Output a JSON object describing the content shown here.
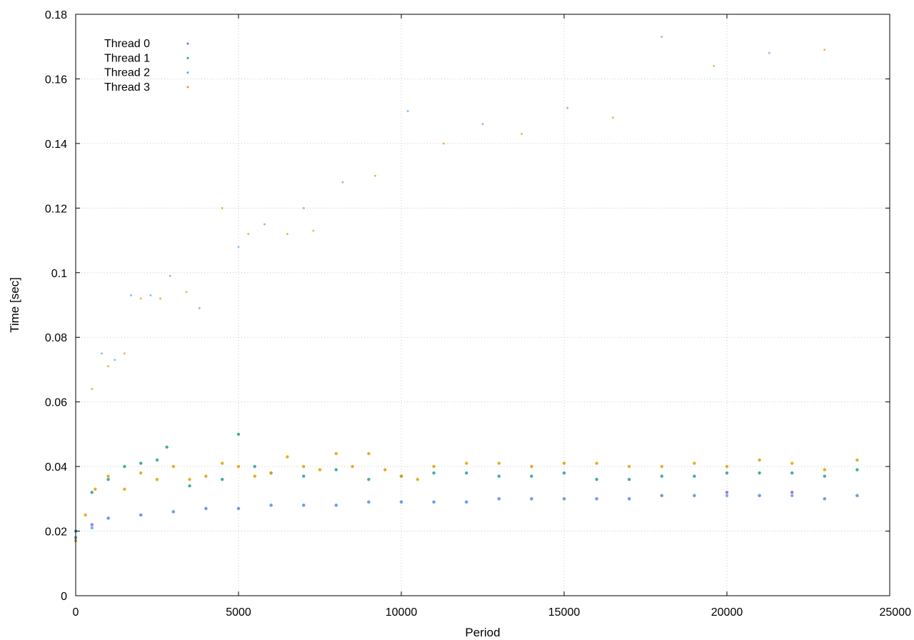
{
  "chart_data": {
    "type": "scatter",
    "xlabel": "Period",
    "ylabel": "Time [sec]",
    "xlim": [
      0,
      25000
    ],
    "ylim": [
      0,
      0.18
    ],
    "xticks": [
      0,
      5000,
      10000,
      15000,
      20000,
      25000
    ],
    "yticks": [
      0,
      0.02,
      0.04,
      0.06,
      0.08,
      0.1,
      0.12,
      0.14,
      0.16,
      0.18
    ],
    "xtick_labels": [
      "0",
      "5000",
      "10000",
      "15000",
      "20000",
      "25000"
    ],
    "ytick_labels": [
      "0",
      "0.02",
      "0.04",
      "0.06",
      "0.08",
      "0.1",
      "0.12",
      "0.14",
      "0.16",
      "0.18"
    ],
    "grid": true,
    "legend_position": "top-left",
    "series": [
      {
        "name": "Thread 0",
        "color": "#9b59e6",
        "x": [
          0,
          500,
          1000,
          2000,
          3000,
          4000,
          5000,
          6000,
          7000,
          8000,
          9000,
          10000,
          11000,
          12000,
          13000,
          14000,
          15000,
          16000,
          17000,
          18000,
          19000,
          20000,
          21000,
          22000,
          23000,
          24000
        ],
        "y": [
          0.018,
          0.022,
          0.024,
          0.025,
          0.026,
          0.027,
          0.027,
          0.028,
          0.028,
          0.028,
          0.029,
          0.029,
          0.029,
          0.029,
          0.03,
          0.03,
          0.03,
          0.03,
          0.03,
          0.031,
          0.031,
          0.032,
          0.031,
          0.032,
          0.03,
          0.031
        ]
      },
      {
        "name": "Thread 1",
        "color": "#20a090",
        "x": [
          0,
          500,
          1000,
          1500,
          2000,
          2500,
          2800,
          3500,
          4500,
          5000,
          5500,
          6000,
          7000,
          8000,
          9000,
          10000,
          11000,
          12000,
          13000,
          14000,
          15000,
          16000,
          17000,
          18000,
          19000,
          20000,
          21000,
          22000,
          23000,
          24000
        ],
        "y": [
          0.02,
          0.032,
          0.036,
          0.04,
          0.041,
          0.042,
          0.046,
          0.034,
          0.036,
          0.05,
          0.04,
          0.038,
          0.037,
          0.039,
          0.036,
          0.037,
          0.038,
          0.038,
          0.037,
          0.037,
          0.038,
          0.036,
          0.036,
          0.037,
          0.037,
          0.038,
          0.038,
          0.038,
          0.037,
          0.039
        ]
      },
      {
        "name": "Thread 2",
        "color": "#5aa8e6",
        "x": [
          0,
          500,
          1000,
          2000,
          3000,
          4000,
          5000,
          6000,
          7000,
          8000,
          9000,
          10000,
          11000,
          12000,
          13000,
          14000,
          15000,
          16000,
          17000,
          18000,
          19000,
          20000,
          21000,
          22000,
          23000,
          24000
        ],
        "y": [
          0.018,
          0.021,
          0.024,
          0.025,
          0.026,
          0.027,
          0.027,
          0.028,
          0.028,
          0.028,
          0.029,
          0.029,
          0.029,
          0.029,
          0.03,
          0.03,
          0.03,
          0.03,
          0.03,
          0.031,
          0.031,
          0.031,
          0.031,
          0.031,
          0.03,
          0.031
        ]
      },
      {
        "name": "Thread 3",
        "color": "#e0a000",
        "x": [
          0,
          300,
          600,
          1000,
          1500,
          2000,
          2500,
          3000,
          3500,
          4000,
          4500,
          5000,
          5500,
          6000,
          6500,
          7000,
          7500,
          8000,
          8500,
          9000,
          9500,
          10000,
          10500,
          11000,
          12000,
          13000,
          14000,
          15000,
          16000,
          17000,
          18000,
          19000,
          20000,
          21000,
          22000,
          23000,
          24000
        ],
        "y": [
          0.017,
          0.025,
          0.033,
          0.037,
          0.033,
          0.038,
          0.036,
          0.04,
          0.036,
          0.037,
          0.041,
          0.04,
          0.037,
          0.038,
          0.043,
          0.04,
          0.039,
          0.044,
          0.04,
          0.044,
          0.039,
          0.037,
          0.036,
          0.04,
          0.041,
          0.041,
          0.04,
          0.041,
          0.041,
          0.04,
          0.04,
          0.041,
          0.04,
          0.042,
          0.041,
          0.039,
          0.042
        ]
      }
    ],
    "outliers": {
      "x": [
        500,
        800,
        1000,
        1200,
        1500,
        1700,
        2000,
        2300,
        2600,
        2900,
        3400,
        3800,
        4500,
        5000,
        5300,
        5800,
        6500,
        7000,
        7300,
        8200,
        9200,
        10200,
        11300,
        12500,
        13700,
        15100,
        16500,
        18000,
        19600,
        21300,
        23000
      ],
      "y": [
        0.064,
        0.075,
        0.071,
        0.073,
        0.075,
        0.093,
        0.092,
        0.093,
        0.092,
        0.099,
        0.094,
        0.089,
        0.12,
        0.108,
        0.112,
        0.115,
        0.112,
        0.12,
        0.113,
        0.128,
        0.13,
        0.15,
        0.14,
        0.146,
        0.143,
        0.151,
        0.148,
        0.173,
        0.164,
        0.168,
        0.169
      ]
    }
  }
}
